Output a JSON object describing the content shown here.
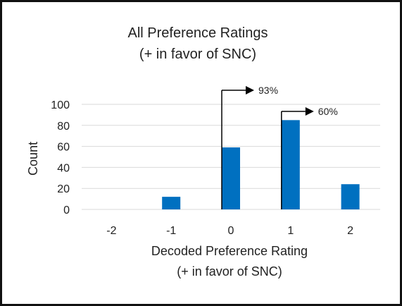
{
  "chart_data": {
    "type": "bar",
    "title": [
      "All Preference Ratings",
      "(+ in favor of SNC)"
    ],
    "xlabel": [
      "Decoded Preference Rating",
      "(+ in favor of SNC)"
    ],
    "ylabel": "Count",
    "categories": [
      "-2",
      "-1",
      "0",
      "1",
      "2"
    ],
    "values": [
      0,
      12,
      59,
      85,
      24
    ],
    "ylim": [
      0,
      100
    ],
    "yticks": [
      0,
      20,
      40,
      60,
      80,
      100
    ],
    "grid": true,
    "bar_color": "#0070C0",
    "annotations": [
      {
        "category": "0",
        "text": "93%"
      },
      {
        "category": "1",
        "text": "60%"
      }
    ]
  }
}
